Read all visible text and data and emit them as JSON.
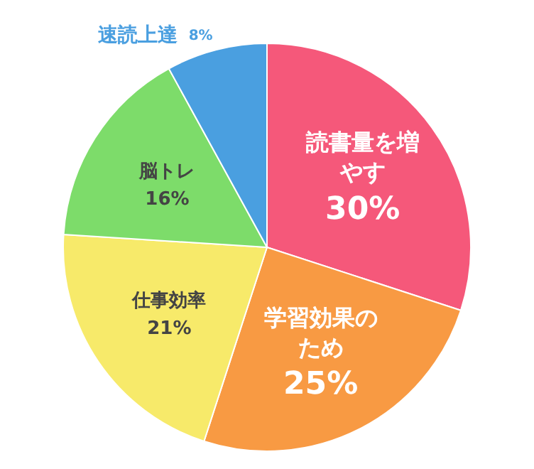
{
  "chart_data": {
    "type": "pie",
    "categories": [
      "読書量を増やす",
      "学習効果のため",
      "仕事効率",
      "脳トレ",
      "速読上達"
    ],
    "values": [
      30,
      25,
      21,
      16,
      8
    ],
    "colors": [
      "#f5587a",
      "#f89a43",
      "#f7ea6a",
      "#7ddc6a",
      "#4a9fe0"
    ],
    "value_labels": [
      "30%",
      "25%",
      "21%",
      "16%",
      "8%"
    ],
    "legend": false
  }
}
